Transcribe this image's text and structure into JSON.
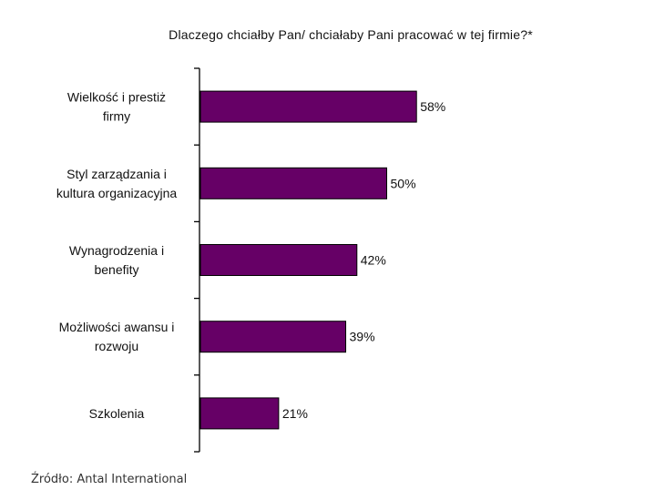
{
  "chart_data": {
    "type": "bar",
    "orientation": "horizontal",
    "title": "Dlaczego chciałby Pan/ chciałaby Pani pracować w tej firmie?*",
    "categories": [
      [
        "Wielkość i prestiż",
        "firmy"
      ],
      [
        "Styl zarządzania i",
        "kultura organizacyjna"
      ],
      [
        "Wynagrodzenia i",
        "benefity"
      ],
      [
        "Możliwości awansu i",
        "rozwoju"
      ],
      [
        "Szkolenia"
      ]
    ],
    "values": [
      58,
      50,
      42,
      39,
      21
    ],
    "value_labels": [
      "58%",
      "50%",
      "42%",
      "39%",
      "21%"
    ],
    "xlim": [
      0,
      100
    ],
    "bar_color": "#660066",
    "grid": false,
    "legend": "none"
  },
  "source": "Źródło: Antal International"
}
